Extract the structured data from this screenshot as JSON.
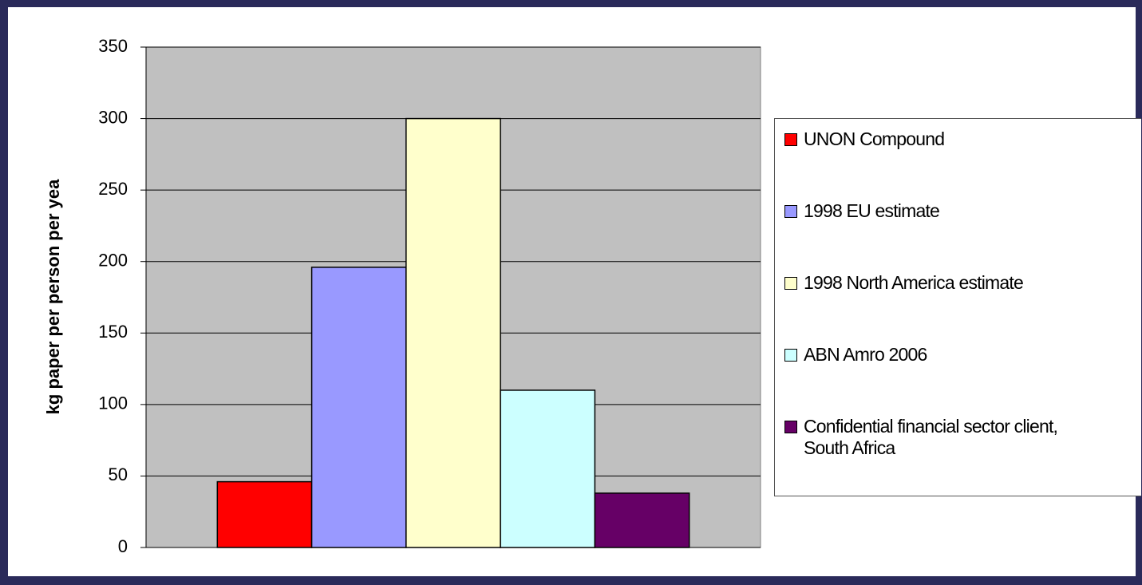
{
  "chart_data": {
    "type": "bar",
    "y_label": "kg paper per person per yea",
    "categories": [
      null
    ],
    "series": [
      {
        "name": "UNON Compound",
        "color": "#ff0000",
        "values": [
          46
        ]
      },
      {
        "name": "1998 EU estimate",
        "color": "#9999ff",
        "values": [
          196
        ]
      },
      {
        "name": "1998 North America estimate",
        "color": "#ffffcc",
        "values": [
          300
        ]
      },
      {
        "name": "ABN Amro 2006",
        "color": "#ccffff",
        "values": [
          110
        ]
      },
      {
        "name": "Confidential financial sector client, South Africa",
        "color": "#660066",
        "values": [
          38
        ]
      }
    ],
    "ylim": [
      0,
      350
    ],
    "yticks": [
      0,
      50,
      100,
      150,
      200,
      250,
      300,
      350
    ],
    "grid": true,
    "legend": "right"
  }
}
